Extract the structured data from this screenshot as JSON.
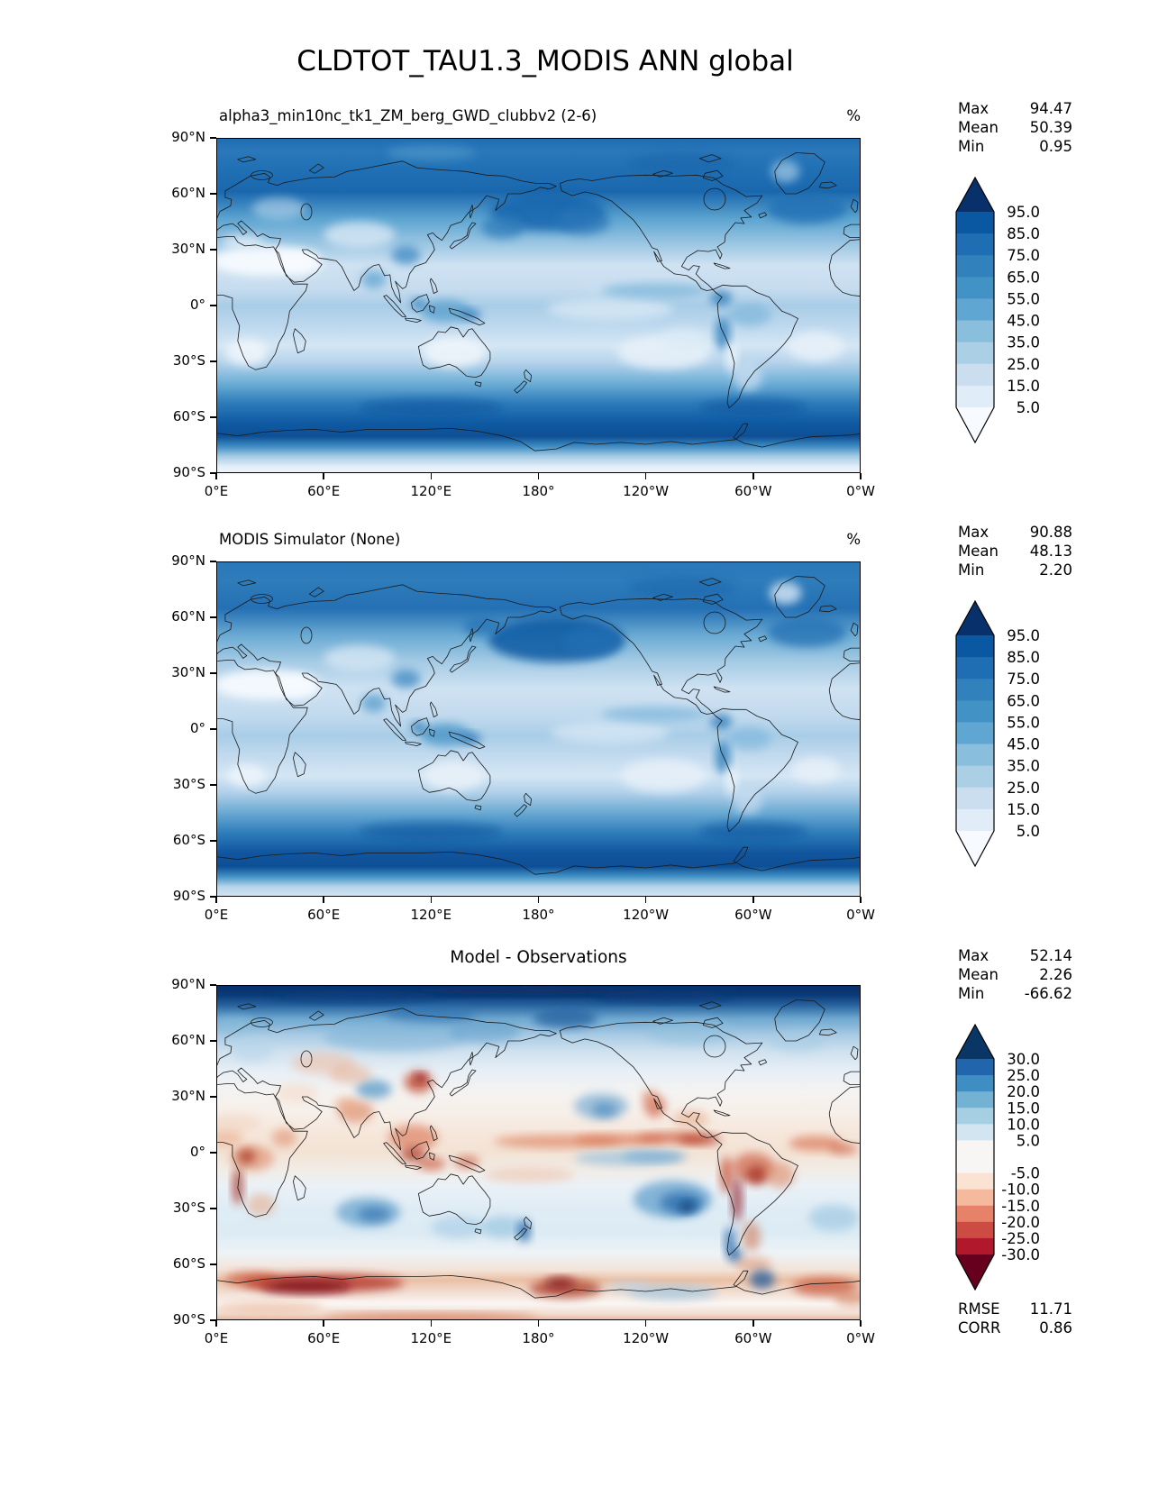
{
  "title": "CLDTOT_TAU1.3_MODIS ANN global",
  "axes": {
    "lon_labels": [
      "0°E",
      "60°E",
      "120°E",
      "180°",
      "120°W",
      "60°W",
      "0°W"
    ],
    "lat_labels": [
      "90°N",
      "60°N",
      "30°N",
      "0°",
      "30°S",
      "60°S",
      "90°S"
    ]
  },
  "panels": [
    {
      "id": "model",
      "subtitle": "alpha3_min10nc_tk1_ZM_berg_GWD_clubbv2 (2-6)",
      "unit": "%",
      "stats": [
        {
          "label": "Max",
          "value": "94.47"
        },
        {
          "label": "Mean",
          "value": "50.39"
        },
        {
          "label": "Min",
          "value": "0.95"
        }
      ],
      "colorbar": {
        "labels": [
          "95.0",
          "85.0",
          "75.0",
          "65.0",
          "55.0",
          "45.0",
          "35.0",
          "25.0",
          "15.0",
          "5.0"
        ],
        "colors_top_to_bottom": [
          "#08306b",
          "#0a57a2",
          "#1f6eb3",
          "#3181bd",
          "#4292c6",
          "#60a6d2",
          "#89bedc",
          "#abd0e6",
          "#cadef0",
          "#e0ecf7",
          "#f7fbff"
        ]
      }
    },
    {
      "id": "simulator",
      "subtitle": "MODIS Simulator (None)",
      "unit": "%",
      "stats": [
        {
          "label": "Max",
          "value": "90.88"
        },
        {
          "label": "Mean",
          "value": "48.13"
        },
        {
          "label": "Min",
          "value": "2.20"
        }
      ],
      "colorbar": {
        "labels": [
          "95.0",
          "85.0",
          "75.0",
          "65.0",
          "55.0",
          "45.0",
          "35.0",
          "25.0",
          "15.0",
          "5.0"
        ],
        "colors_top_to_bottom": [
          "#08306b",
          "#0a57a2",
          "#1f6eb3",
          "#3181bd",
          "#4292c6",
          "#60a6d2",
          "#89bedc",
          "#abd0e6",
          "#cadef0",
          "#e0ecf7",
          "#f7fbff"
        ]
      }
    },
    {
      "id": "diff",
      "title": "Model - Observations",
      "stats": [
        {
          "label": "Max",
          "value": "52.14"
        },
        {
          "label": "Mean",
          "value": "2.26"
        },
        {
          "label": "Min",
          "value": "-66.62"
        }
      ],
      "colorbar": {
        "labels": [
          "30.0",
          "25.0",
          "20.0",
          "15.0",
          "10.0",
          "5.0",
          "-5.0",
          "-10.0",
          "-15.0",
          "-20.0",
          "-25.0",
          "-30.0"
        ],
        "colors_top_to_bottom": [
          "#0a3666",
          "#2166ac",
          "#3e8ec4",
          "#74b2d4",
          "#a7cfe4",
          "#d2e5f0",
          "#f7f6f4",
          "#fbe3d4",
          "#f5b99d",
          "#e58267",
          "#cc4c43",
          "#b2182b",
          "#67001f"
        ]
      },
      "metrics": [
        {
          "label": "RMSE",
          "value": "11.71"
        },
        {
          "label": "CORR",
          "value": "0.86"
        }
      ]
    }
  ],
  "chart_data": {
    "type": "heatmap",
    "subtype": "filled-contour global maps (3 stacked panels)",
    "title": "CLDTOT_TAU1.3_MODIS ANN global",
    "projection": "equirectangular",
    "lon_range_deg_east": [
      0,
      360
    ],
    "lat_range_deg_north": [
      -90,
      90
    ],
    "lon_ticks": [
      "0°E",
      "60°E",
      "120°E",
      "180°",
      "120°W",
      "60°W",
      "0°W"
    ],
    "lat_ticks": [
      "90°N",
      "60°N",
      "30°N",
      "0°",
      "30°S",
      "60°S",
      "90°S"
    ],
    "panels": [
      {
        "name": "alpha3_min10nc_tk1_ZM_berg_GWD_clubbv2 (2-6)",
        "units": "%",
        "colormap": "Blues",
        "levels": [
          5,
          15,
          25,
          35,
          45,
          55,
          65,
          75,
          85,
          95
        ],
        "max": 94.47,
        "mean": 50.39,
        "min": 0.95,
        "pattern": "High cloud fraction (75-95%) over midlatitude storm tracks and Southern Ocean 45-70S; low values (5-25%) over Sahara, Arabia, Australia, Kalahari and subtropical SE Pacific/S Atlantic; near-white over Antarctica interior"
      },
      {
        "name": "MODIS Simulator (None)",
        "units": "%",
        "colormap": "Blues",
        "levels": [
          5,
          15,
          25,
          35,
          45,
          55,
          65,
          75,
          85,
          95
        ],
        "max": 90.88,
        "mean": 48.13,
        "min": 2.2,
        "pattern": "Similar structure to model panel: dark N Pacific and Southern Ocean bands, dry subtropical continents; Antarctica light blue"
      },
      {
        "name": "Model - Observations",
        "units": "%",
        "colormap": "RdBu",
        "levels": [
          -30,
          -25,
          -20,
          -15,
          -10,
          -5,
          5,
          10,
          15,
          20,
          25,
          30
        ],
        "max": 52.14,
        "mean": 2.26,
        "min": -66.62,
        "rmse": 11.71,
        "corr": 0.86,
        "pattern": "Strong positive (blue) bias >30 over Arctic cap; negative (red) biases along tropical ITCZ, maritime continent, South America, Africa and East Antarctica coast; blue blobs in subtropical S Pacific and Indian Ocean"
      }
    ]
  }
}
